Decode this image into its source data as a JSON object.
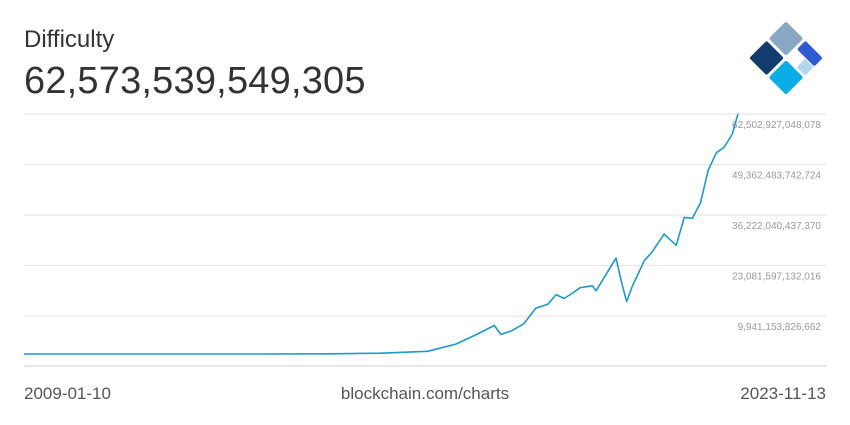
{
  "header": {
    "metric_name": "Difficulty",
    "current_value": "62,573,539,549,305"
  },
  "footer": {
    "start_date": "2009-01-10",
    "source": "blockchain.com/charts",
    "end_date": "2023-11-13"
  },
  "logo": {
    "icon": "blockchain-logo-icon",
    "colors": [
      "#8aa8c4",
      "#123b6e",
      "#2f5bd2",
      "#0aaee6",
      "#b3d7ef"
    ]
  },
  "chart_data": {
    "type": "line",
    "title": "Difficulty",
    "xlabel": "",
    "ylabel": "",
    "x_range": [
      "2009-01-10",
      "2023-11-13"
    ],
    "ylim": [
      0,
      65000000000000
    ],
    "y_ticks": [
      {
        "value": 9941153826662,
        "label": "9,941,153,826,662"
      },
      {
        "value": 23081597132016,
        "label": "23,081,597,132,016"
      },
      {
        "value": 36222040437370,
        "label": "36,222,040,437,370"
      },
      {
        "value": 49362483742724,
        "label": "49,362,483,742,724"
      },
      {
        "value": 62502927048078,
        "label": "62,502,927,048,078"
      }
    ],
    "grid": true,
    "line_color": "#1a9bcd",
    "series": [
      {
        "values": [
          [
            "2009-01-10",
            1
          ],
          [
            "2012-01-01",
            1300000
          ],
          [
            "2014-01-01",
            1400000000
          ],
          [
            "2015-06-01",
            47000000000
          ],
          [
            "2016-06-01",
            200000000000
          ],
          [
            "2017-06-01",
            700000000000
          ],
          [
            "2018-01-01",
            2600000000000
          ],
          [
            "2018-06-01",
            5000000000000
          ],
          [
            "2018-10-20",
            7450000000000
          ],
          [
            "2018-12-10",
            5100000000000
          ],
          [
            "2019-03-01",
            6100000000000
          ],
          [
            "2019-06-01",
            7900000000000
          ],
          [
            "2019-09-01",
            12000000000000
          ],
          [
            "2019-12-01",
            13000000000000
          ],
          [
            "2020-02-01",
            15500000000000
          ],
          [
            "2020-04-01",
            14500000000000
          ],
          [
            "2020-06-01",
            15800000000000
          ],
          [
            "2020-08-01",
            17300000000000
          ],
          [
            "2020-11-01",
            17800000000000
          ],
          [
            "2020-12-01",
            16500000000000
          ],
          [
            "2021-02-01",
            20000000000000
          ],
          [
            "2021-05-01",
            25000000000000
          ],
          [
            "2021-06-10",
            19000000000000
          ],
          [
            "2021-07-20",
            13700000000000
          ],
          [
            "2021-09-01",
            17600000000000
          ],
          [
            "2021-12-01",
            24300000000000
          ],
          [
            "2022-02-01",
            26700000000000
          ],
          [
            "2022-05-01",
            31250000000000
          ],
          [
            "2022-08-01",
            28350000000000
          ],
          [
            "2022-10-01",
            35600000000000
          ],
          [
            "2022-12-01",
            35400000000000
          ],
          [
            "2023-02-01",
            39400000000000
          ],
          [
            "2023-04-01",
            47900000000000
          ],
          [
            "2023-06-01",
            52400000000000
          ],
          [
            "2023-08-01",
            53900000000000
          ],
          [
            "2023-10-01",
            57300000000000
          ],
          [
            "2023-11-13",
            62573539549305
          ]
        ]
      }
    ]
  }
}
